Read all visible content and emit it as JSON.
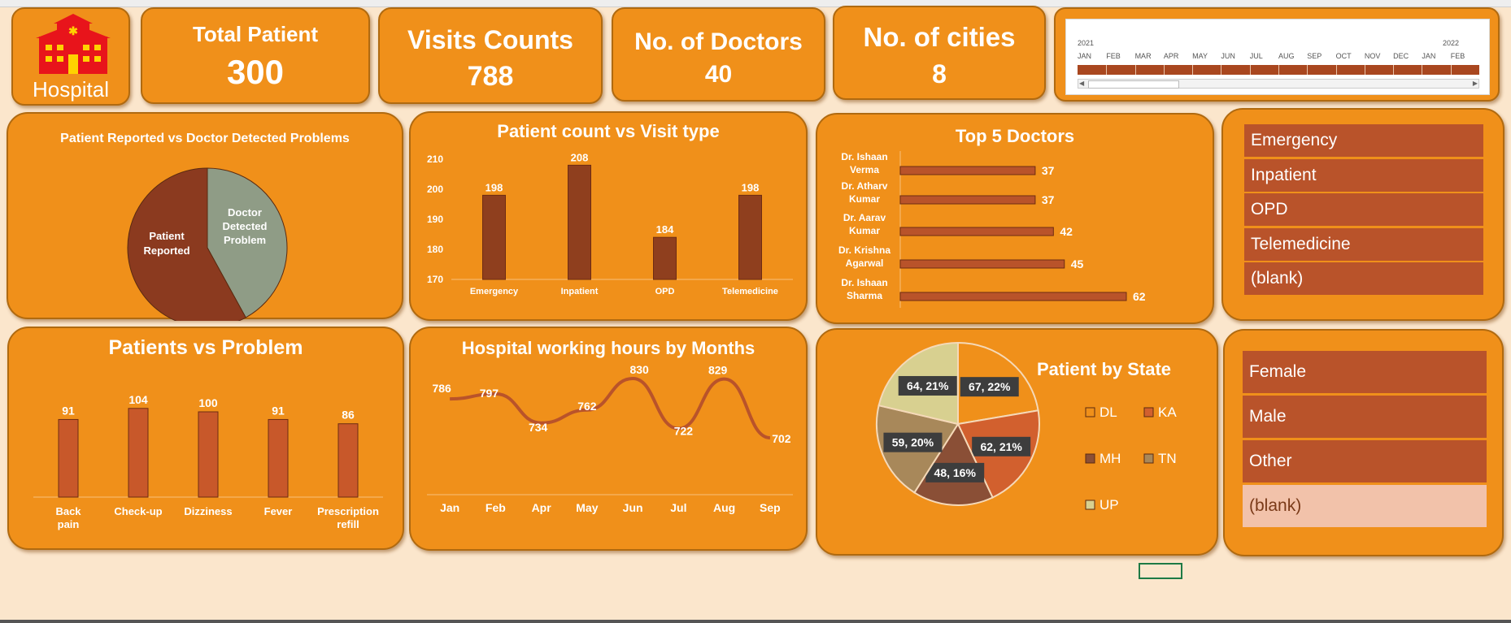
{
  "logo": {
    "label": "Hospital"
  },
  "kpis": {
    "total_patient": {
      "label": "Total Patient",
      "value": "300"
    },
    "visits_counts": {
      "label": "Visits Counts",
      "value": "788"
    },
    "no_of_doctors": {
      "label": "No. of Doctors",
      "value": "40"
    },
    "no_of_cities": {
      "label": "No. of cities",
      "value": "8"
    }
  },
  "timeline": {
    "year_2021": "2021",
    "year_2022": "2022",
    "months": [
      "JAN",
      "FEB",
      "MAR",
      "APR",
      "MAY",
      "JUN",
      "JUL",
      "AUG",
      "SEP",
      "OCT",
      "NOV",
      "DEC",
      "JAN",
      "FEB"
    ]
  },
  "pie_problems": {
    "title": "Patient Reported vs Doctor Detected Problems",
    "labels": {
      "reported": "Patient Reported",
      "detected": "Doctor Detected Problem"
    }
  },
  "visit_type_chart": {
    "title": "Patient count vs Visit type"
  },
  "top_doctors_chart": {
    "title": "Top 5 Doctors"
  },
  "problems_chart": {
    "title": "Patients vs Problem"
  },
  "hours_chart": {
    "title": "Hospital working hours by Months"
  },
  "state_chart": {
    "title": "Patient by State"
  },
  "visit_slicer": {
    "items": [
      "Emergency",
      "Inpatient",
      "OPD",
      "Telemedicine",
      "(blank)"
    ]
  },
  "gender_slicer": {
    "items": [
      "Female",
      "Male",
      "Other",
      "(blank)"
    ]
  },
  "colors": {
    "panel": "#f0901a",
    "background": "#fbe6cc",
    "bar": "#8f3f1e",
    "slicer_item": "#b9532a",
    "slicer_blank": "#f2c2aa"
  },
  "chart_data": [
    {
      "type": "pie",
      "title": "Patient Reported vs Doctor Detected Problems",
      "labels": [
        "Patient Reported",
        "Doctor Detected Problem"
      ],
      "values": [
        58,
        42
      ]
    },
    {
      "type": "bar",
      "title": "Patient count vs Visit type",
      "categories": [
        "Emergency",
        "Inpatient",
        "OPD",
        "Telemedicine"
      ],
      "values": [
        198,
        208,
        184,
        198
      ],
      "ylim": [
        170,
        210
      ],
      "yticks": [
        170,
        180,
        190,
        200,
        210
      ]
    },
    {
      "type": "bar",
      "orientation": "horizontal",
      "title": "Top 5 Doctors",
      "categories": [
        "Dr. Ishaan Verma",
        "Dr. Atharv Kumar",
        "Dr. Aarav Kumar",
        "Dr. Krishna Agarwal",
        "Dr. Ishaan Sharma"
      ],
      "values": [
        37,
        37,
        42,
        45,
        62
      ]
    },
    {
      "type": "bar",
      "title": "Patients vs Problem",
      "categories": [
        "Back pain",
        "Check-up",
        "Dizziness",
        "Fever",
        "Prescription refill"
      ],
      "values": [
        91,
        104,
        100,
        91,
        86
      ]
    },
    {
      "type": "line",
      "title": "Hospital working hours by Months",
      "categories": [
        "Jan",
        "Feb",
        "Apr",
        "May",
        "Jun",
        "Jul",
        "Aug",
        "Sep"
      ],
      "values": [
        786,
        797,
        734,
        762,
        830,
        722,
        829,
        702
      ]
    },
    {
      "type": "pie",
      "title": "Patient by State",
      "legend": [
        "DL",
        "KA",
        "MH",
        "TN",
        "UP"
      ],
      "values": [
        67,
        62,
        48,
        59,
        64
      ],
      "data_labels": [
        "67, 22%",
        "62, 21%",
        "48, 16%",
        "59, 20%",
        "64, 21%"
      ],
      "colors": [
        "#f0901a",
        "#d2602e",
        "#8a4f36",
        "#a8885a",
        "#d8d090"
      ]
    }
  ]
}
